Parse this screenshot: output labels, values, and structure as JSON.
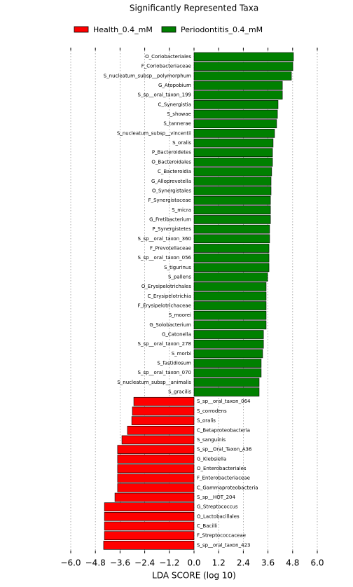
{
  "chart_data": {
    "type": "lefse_bar",
    "title": "Significantly Represented Taxa",
    "xlabel": "LDA SCORE (log 10)",
    "xlim": [
      -6,
      6
    ],
    "xticks": [
      {
        "value": -6,
        "label": "−6.0"
      },
      {
        "value": -4.8,
        "label": "−4.8"
      },
      {
        "value": -3.6,
        "label": "−3.6"
      },
      {
        "value": -2.4,
        "label": "−2.4"
      },
      {
        "value": -1.2,
        "label": "−1.2"
      },
      {
        "value": 0,
        "label": "0.0"
      },
      {
        "value": 1.2,
        "label": "1.2"
      },
      {
        "value": 2.4,
        "label": "2.4"
      },
      {
        "value": 3.6,
        "label": "3.6"
      },
      {
        "value": 4.8,
        "label": "4.8"
      },
      {
        "value": 6,
        "label": "6.0"
      }
    ],
    "grid": true,
    "series": [
      {
        "name": "Health_0.4_mM",
        "color": "#ff0000",
        "categories": [
          "S_sp__oral_taxon_064",
          "S_corrodens",
          "S_oralis",
          "C_Betaproteobacteria",
          "S_sanguinis",
          "S_sp__Oral_Taxon_A36",
          "G_Klebsiella",
          "O_Enterobacteriales",
          "F_Enterobacteriaceae",
          "C_Gammaproteobacteria",
          "S_sp__HOT_204",
          "G_Streptococcus",
          "O_Lactobacillales",
          "C_Bacilli",
          "F_Streptococcaceae",
          "S_sp__oral_taxon_423"
        ],
        "values": [
          -2.93,
          -3.0,
          -3.03,
          -3.24,
          -3.51,
          -3.72,
          -3.72,
          -3.72,
          -3.72,
          -3.72,
          -3.85,
          -4.36,
          -4.36,
          -4.36,
          -4.36,
          -4.4
        ]
      },
      {
        "name": "Periodontitis_0.4_mM",
        "color": "#008000",
        "categories": [
          "O_Coriobacteriales",
          "F_Coriobacteriaceae",
          "S_nucleatum_subsp__polymorphum",
          "G_Atopobium",
          "S_sp__oral_taxon_199",
          "C_Synergistia",
          "S_showae",
          "S_tannerae",
          "S_nucleatum_subsp__vincentii",
          "S_oralis",
          "P_Bacteroidetes",
          "O_Bacteroidales",
          "C_Bacteroidia",
          "G_Alloprevotella",
          "O_Synergistales",
          "F_Synergistaceae",
          "S_micra",
          "G_Fretibacterium",
          "P_Synergistetes",
          "S_sp__oral_taxon_360",
          "F_Prevotellaceae",
          "S_sp__oral_taxon_056",
          "S_tigurinus",
          "S_pallens",
          "O_Erysipelotrichales",
          "C_Erysipelotrichia",
          "F_Erysipelotrichaceae",
          "S_moorei",
          "G_Solobacterium",
          "G_Catonella",
          "S_sp__oral_taxon_278",
          "S_morbi",
          "S_fastidiosum",
          "S_sp__oral_taxon_070",
          "S_nucleatum_subsp__animalis",
          "S_gracilis"
        ],
        "values": [
          4.84,
          4.81,
          4.74,
          4.3,
          4.3,
          4.09,
          4.06,
          4.02,
          3.92,
          3.85,
          3.82,
          3.82,
          3.78,
          3.75,
          3.75,
          3.72,
          3.72,
          3.72,
          3.68,
          3.68,
          3.65,
          3.65,
          3.65,
          3.58,
          3.51,
          3.51,
          3.51,
          3.51,
          3.51,
          3.38,
          3.38,
          3.34,
          3.27,
          3.27,
          3.17,
          3.17
        ]
      }
    ]
  }
}
